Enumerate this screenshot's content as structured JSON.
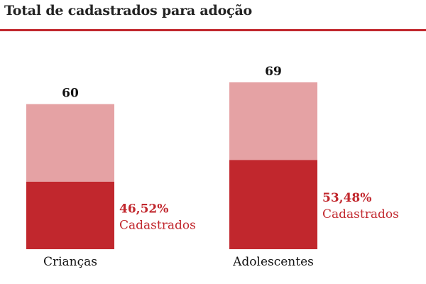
{
  "title": "Total de cadastrados para adoção",
  "colors": {
    "accent": "#c1272d",
    "bar_light": "#e5a2a4",
    "bar_dark": "#c1272d",
    "text": "#111111"
  },
  "chart_data": {
    "type": "bar",
    "stacked": true,
    "title": "Total de cadastrados para adoção",
    "xlabel": "",
    "ylabel": "",
    "ylim": [
      0,
      69
    ],
    "grid": false,
    "categories": [
      "Crianças",
      "Adolescentes"
    ],
    "totals": [
      60,
      69
    ],
    "total_labels": [
      "60",
      "69"
    ],
    "cadastrados_fraction": [
      0.4652,
      0.5348
    ],
    "percent_labels": [
      "46,52%",
      "53,48%"
    ],
    "caption": "Cadastrados"
  }
}
